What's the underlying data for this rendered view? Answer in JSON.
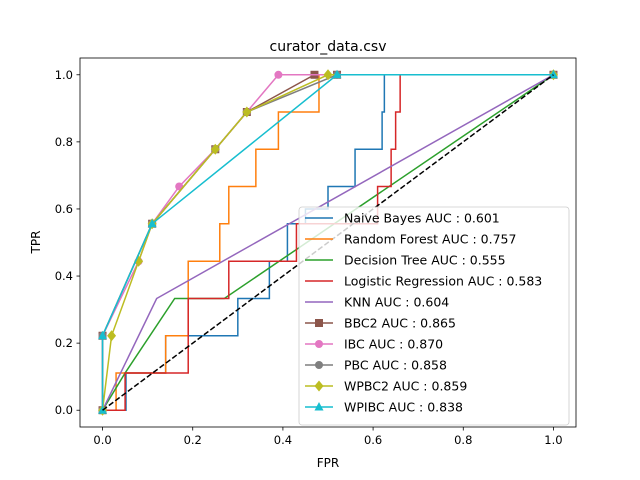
{
  "chart_data": {
    "type": "line",
    "title": "curator_data.csv",
    "xlabel": "FPR",
    "ylabel": "TPR",
    "xlim": [
      -0.05,
      1.05
    ],
    "ylim": [
      -0.05,
      1.05
    ],
    "xticks": [
      0.0,
      0.2,
      0.4,
      0.6,
      0.8,
      1.0
    ],
    "yticks": [
      0.0,
      0.2,
      0.4,
      0.6,
      0.8,
      1.0
    ],
    "xtick_labels": [
      "0.0",
      "0.2",
      "0.4",
      "0.6",
      "0.8",
      "1.0"
    ],
    "ytick_labels": [
      "0.0",
      "0.2",
      "0.4",
      "0.6",
      "0.8",
      "1.0"
    ],
    "legend_position": "lower-right",
    "diagonal": {
      "x": [
        0,
        1
      ],
      "y": [
        0,
        1
      ],
      "color": "#000000",
      "dash": "dashed"
    },
    "series": [
      {
        "name": "Naive Bayes AUC : 0.601",
        "color": "#1f77b4",
        "marker": "none",
        "x": [
          0,
          0.052,
          0.052,
          0.14,
          0.14,
          0.3,
          0.3,
          0.37,
          0.37,
          0.41,
          0.41,
          0.45,
          0.45,
          0.5,
          0.5,
          0.56,
          0.56,
          0.62,
          0.62,
          0.625,
          0.625,
          1.0
        ],
        "y": [
          0,
          0,
          0.111,
          0.111,
          0.222,
          0.222,
          0.333,
          0.333,
          0.444,
          0.444,
          0.556,
          0.556,
          0.6,
          0.6,
          0.667,
          0.667,
          0.778,
          0.778,
          0.889,
          0.889,
          1.0,
          1.0
        ]
      },
      {
        "name": "Random Forest AUC : 0.757",
        "color": "#ff7f0e",
        "marker": "none",
        "x": [
          0,
          0.03,
          0.03,
          0.08,
          0.08,
          0.14,
          0.14,
          0.19,
          0.19,
          0.26,
          0.26,
          0.28,
          0.28,
          0.34,
          0.34,
          0.39,
          0.39,
          0.43,
          0.43,
          0.48,
          0.48,
          1.0
        ],
        "y": [
          0,
          0,
          0.111,
          0.111,
          0.111,
          0.111,
          0.222,
          0.222,
          0.444,
          0.444,
          0.556,
          0.556,
          0.667,
          0.667,
          0.778,
          0.778,
          0.889,
          0.889,
          0.889,
          0.889,
          1.0,
          1.0
        ]
      },
      {
        "name": "Decision Tree AUC : 0.555",
        "color": "#2ca02c",
        "marker": "none",
        "x": [
          0,
          0.05,
          0.16,
          0.27,
          1.0
        ],
        "y": [
          0,
          0.111,
          0.333,
          0.333,
          1.0
        ]
      },
      {
        "name": "Logistic Regression AUC : 0.583",
        "color": "#d62728",
        "marker": "none",
        "x": [
          0,
          0.05,
          0.05,
          0.19,
          0.19,
          0.28,
          0.28,
          0.43,
          0.43,
          0.61,
          0.61,
          0.64,
          0.64,
          0.65,
          0.65,
          0.66,
          0.66,
          1.0
        ],
        "y": [
          0,
          0,
          0.111,
          0.111,
          0.333,
          0.333,
          0.444,
          0.444,
          0.556,
          0.556,
          0.667,
          0.667,
          0.778,
          0.778,
          0.889,
          0.889,
          1.0,
          1.0
        ]
      },
      {
        "name": "KNN AUC : 0.604",
        "color": "#9467bd",
        "marker": "none",
        "x": [
          0,
          0.12,
          1.0
        ],
        "y": [
          0,
          0.333,
          1.0
        ]
      },
      {
        "name": "BBC2 AUC : 0.865",
        "color": "#8c564b",
        "marker": "square",
        "x": [
          0,
          0.0,
          0.11,
          0.25,
          0.32,
          0.47,
          0.52,
          1.0
        ],
        "y": [
          0,
          0.222,
          0.556,
          0.778,
          0.889,
          1.0,
          1.0,
          1.0
        ]
      },
      {
        "name": "IBC AUC : 0.870",
        "color": "#e377c2",
        "marker": "circle",
        "x": [
          0,
          0.0,
          0.08,
          0.11,
          0.17,
          0.25,
          0.32,
          0.39,
          0.52,
          1.0
        ],
        "y": [
          0,
          0.222,
          0.444,
          0.556,
          0.667,
          0.778,
          0.889,
          1.0,
          1.0,
          1.0
        ]
      },
      {
        "name": "PBC AUC : 0.858",
        "color": "#7f7f7f",
        "marker": "circle",
        "x": [
          0,
          0.0,
          0.11,
          0.25,
          0.32,
          0.52,
          1.0
        ],
        "y": [
          0,
          0.222,
          0.556,
          0.778,
          0.889,
          1.0,
          1.0
        ]
      },
      {
        "name": "WPBC2 AUC : 0.859",
        "color": "#bcbd22",
        "marker": "diamond",
        "x": [
          0,
          0.02,
          0.08,
          0.11,
          0.25,
          0.32,
          0.5,
          1.0
        ],
        "y": [
          0,
          0.222,
          0.444,
          0.556,
          0.778,
          0.889,
          1.0,
          1.0
        ]
      },
      {
        "name": "WPIBC AUC : 0.838",
        "color": "#17becf",
        "marker": "triangle",
        "x": [
          0,
          0.0,
          0.11,
          0.52,
          1.0
        ],
        "y": [
          0,
          0.222,
          0.556,
          1.0,
          1.0
        ]
      }
    ]
  }
}
